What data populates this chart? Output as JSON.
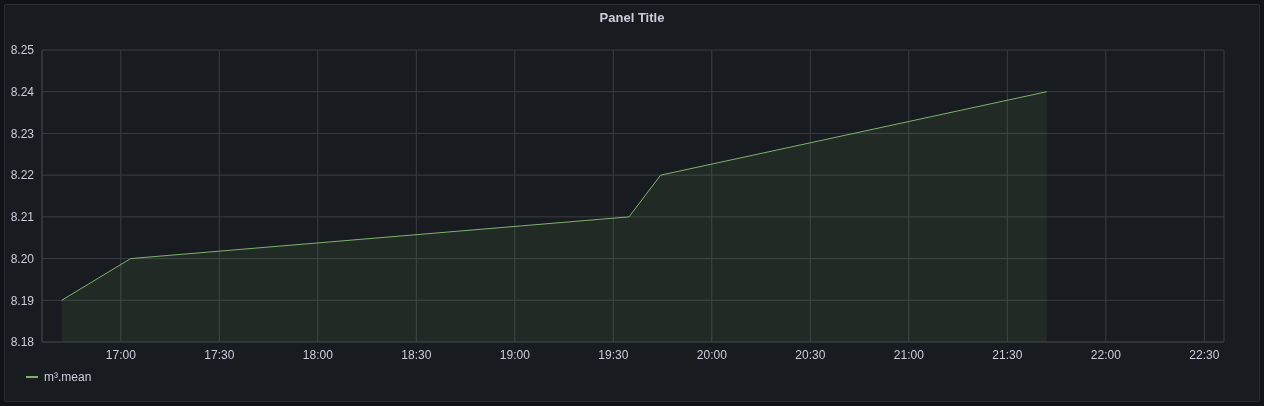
{
  "chart_data": {
    "type": "area",
    "title": "Panel Title",
    "x": [
      16.7,
      17.05,
      19.58,
      19.74,
      21.7
    ],
    "series": [
      {
        "name": "m³.mean",
        "color": "#7eb26d",
        "values": [
          8.19,
          8.2,
          8.21,
          8.22,
          8.24
        ]
      }
    ],
    "xlim": [
      16.6,
      22.6
    ],
    "xticks": [
      {
        "value": 17,
        "label": "17:00"
      },
      {
        "value": 17.5,
        "label": "17:30"
      },
      {
        "value": 18,
        "label": "18:00"
      },
      {
        "value": 18.5,
        "label": "18:30"
      },
      {
        "value": 19,
        "label": "19:00"
      },
      {
        "value": 19.5,
        "label": "19:30"
      },
      {
        "value": 20,
        "label": "20:00"
      },
      {
        "value": 20.5,
        "label": "20:30"
      },
      {
        "value": 21,
        "label": "21:00"
      },
      {
        "value": 21.5,
        "label": "21:30"
      },
      {
        "value": 22,
        "label": "22:00"
      },
      {
        "value": 22.5,
        "label": "22:30"
      }
    ],
    "ylim": [
      8.18,
      8.25
    ],
    "yticks": [
      8.18,
      8.19,
      {
        "value": 8.2,
        "label": "8.20"
      },
      8.21,
      8.22,
      8.23,
      8.24,
      8.25
    ],
    "grid": true,
    "legend": "bottom left",
    "marker": "none",
    "line_style": "solid"
  }
}
